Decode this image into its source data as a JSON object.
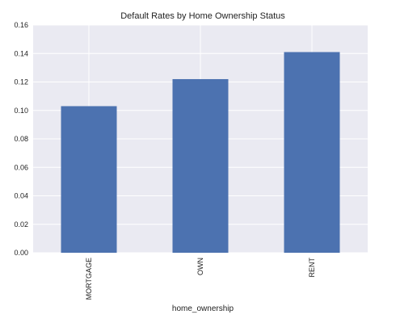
{
  "chart_data": {
    "type": "bar",
    "title": "Default Rates by Home Ownership Status",
    "xlabel": "home_ownership",
    "ylabel": "",
    "categories": [
      "MORTGAGE",
      "OWN",
      "RENT"
    ],
    "values": [
      0.103,
      0.122,
      0.141
    ],
    "ylim": [
      0,
      0.16
    ],
    "yticks": [
      "0.00",
      "0.02",
      "0.04",
      "0.06",
      "0.08",
      "0.10",
      "0.12",
      "0.14",
      "0.16"
    ],
    "grid": true,
    "legend": "none",
    "colors": {
      "bar": "#4c72b0",
      "background": "#eaeaf2",
      "grid": "#ffffff"
    }
  }
}
